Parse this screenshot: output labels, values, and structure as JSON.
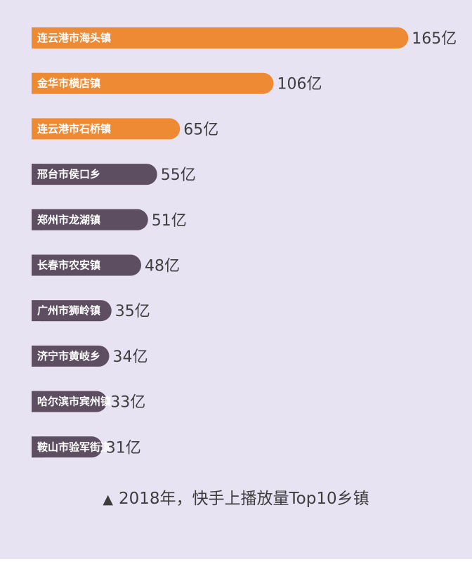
{
  "caption": "2018年，快手上播放量Top10乡镇",
  "caption_marker": "▲",
  "colors": {
    "background": "#e8e3f3",
    "top_bar": "#ee8a34",
    "other_bar": "#5e4e62",
    "bar_text": "#ffffff",
    "value_text": "#3e3e3e"
  },
  "chart_data": {
    "type": "bar",
    "orientation": "horizontal",
    "unit": "亿",
    "categories": [
      "连云港市海头镇",
      "金华市横店镇",
      "连云港市石桥镇",
      "邢台市侯口乡",
      "郑州市龙湖镇",
      "长春市农安镇",
      "广州市狮岭镇",
      "济宁市黄岐乡",
      "哈尔滨市宾州镇",
      "鞍山市验军街道"
    ],
    "values": [
      165,
      106,
      65,
      55,
      51,
      48,
      35,
      34,
      33,
      31
    ],
    "value_labels": [
      "165亿",
      "106亿",
      "65亿",
      "55亿",
      "51亿",
      "48亿",
      "35亿",
      "34亿",
      "33亿",
      "31亿"
    ],
    "highlight_top_n": 3,
    "title": "",
    "xlabel": "",
    "ylabel": "",
    "grid": false,
    "legend": "none"
  }
}
